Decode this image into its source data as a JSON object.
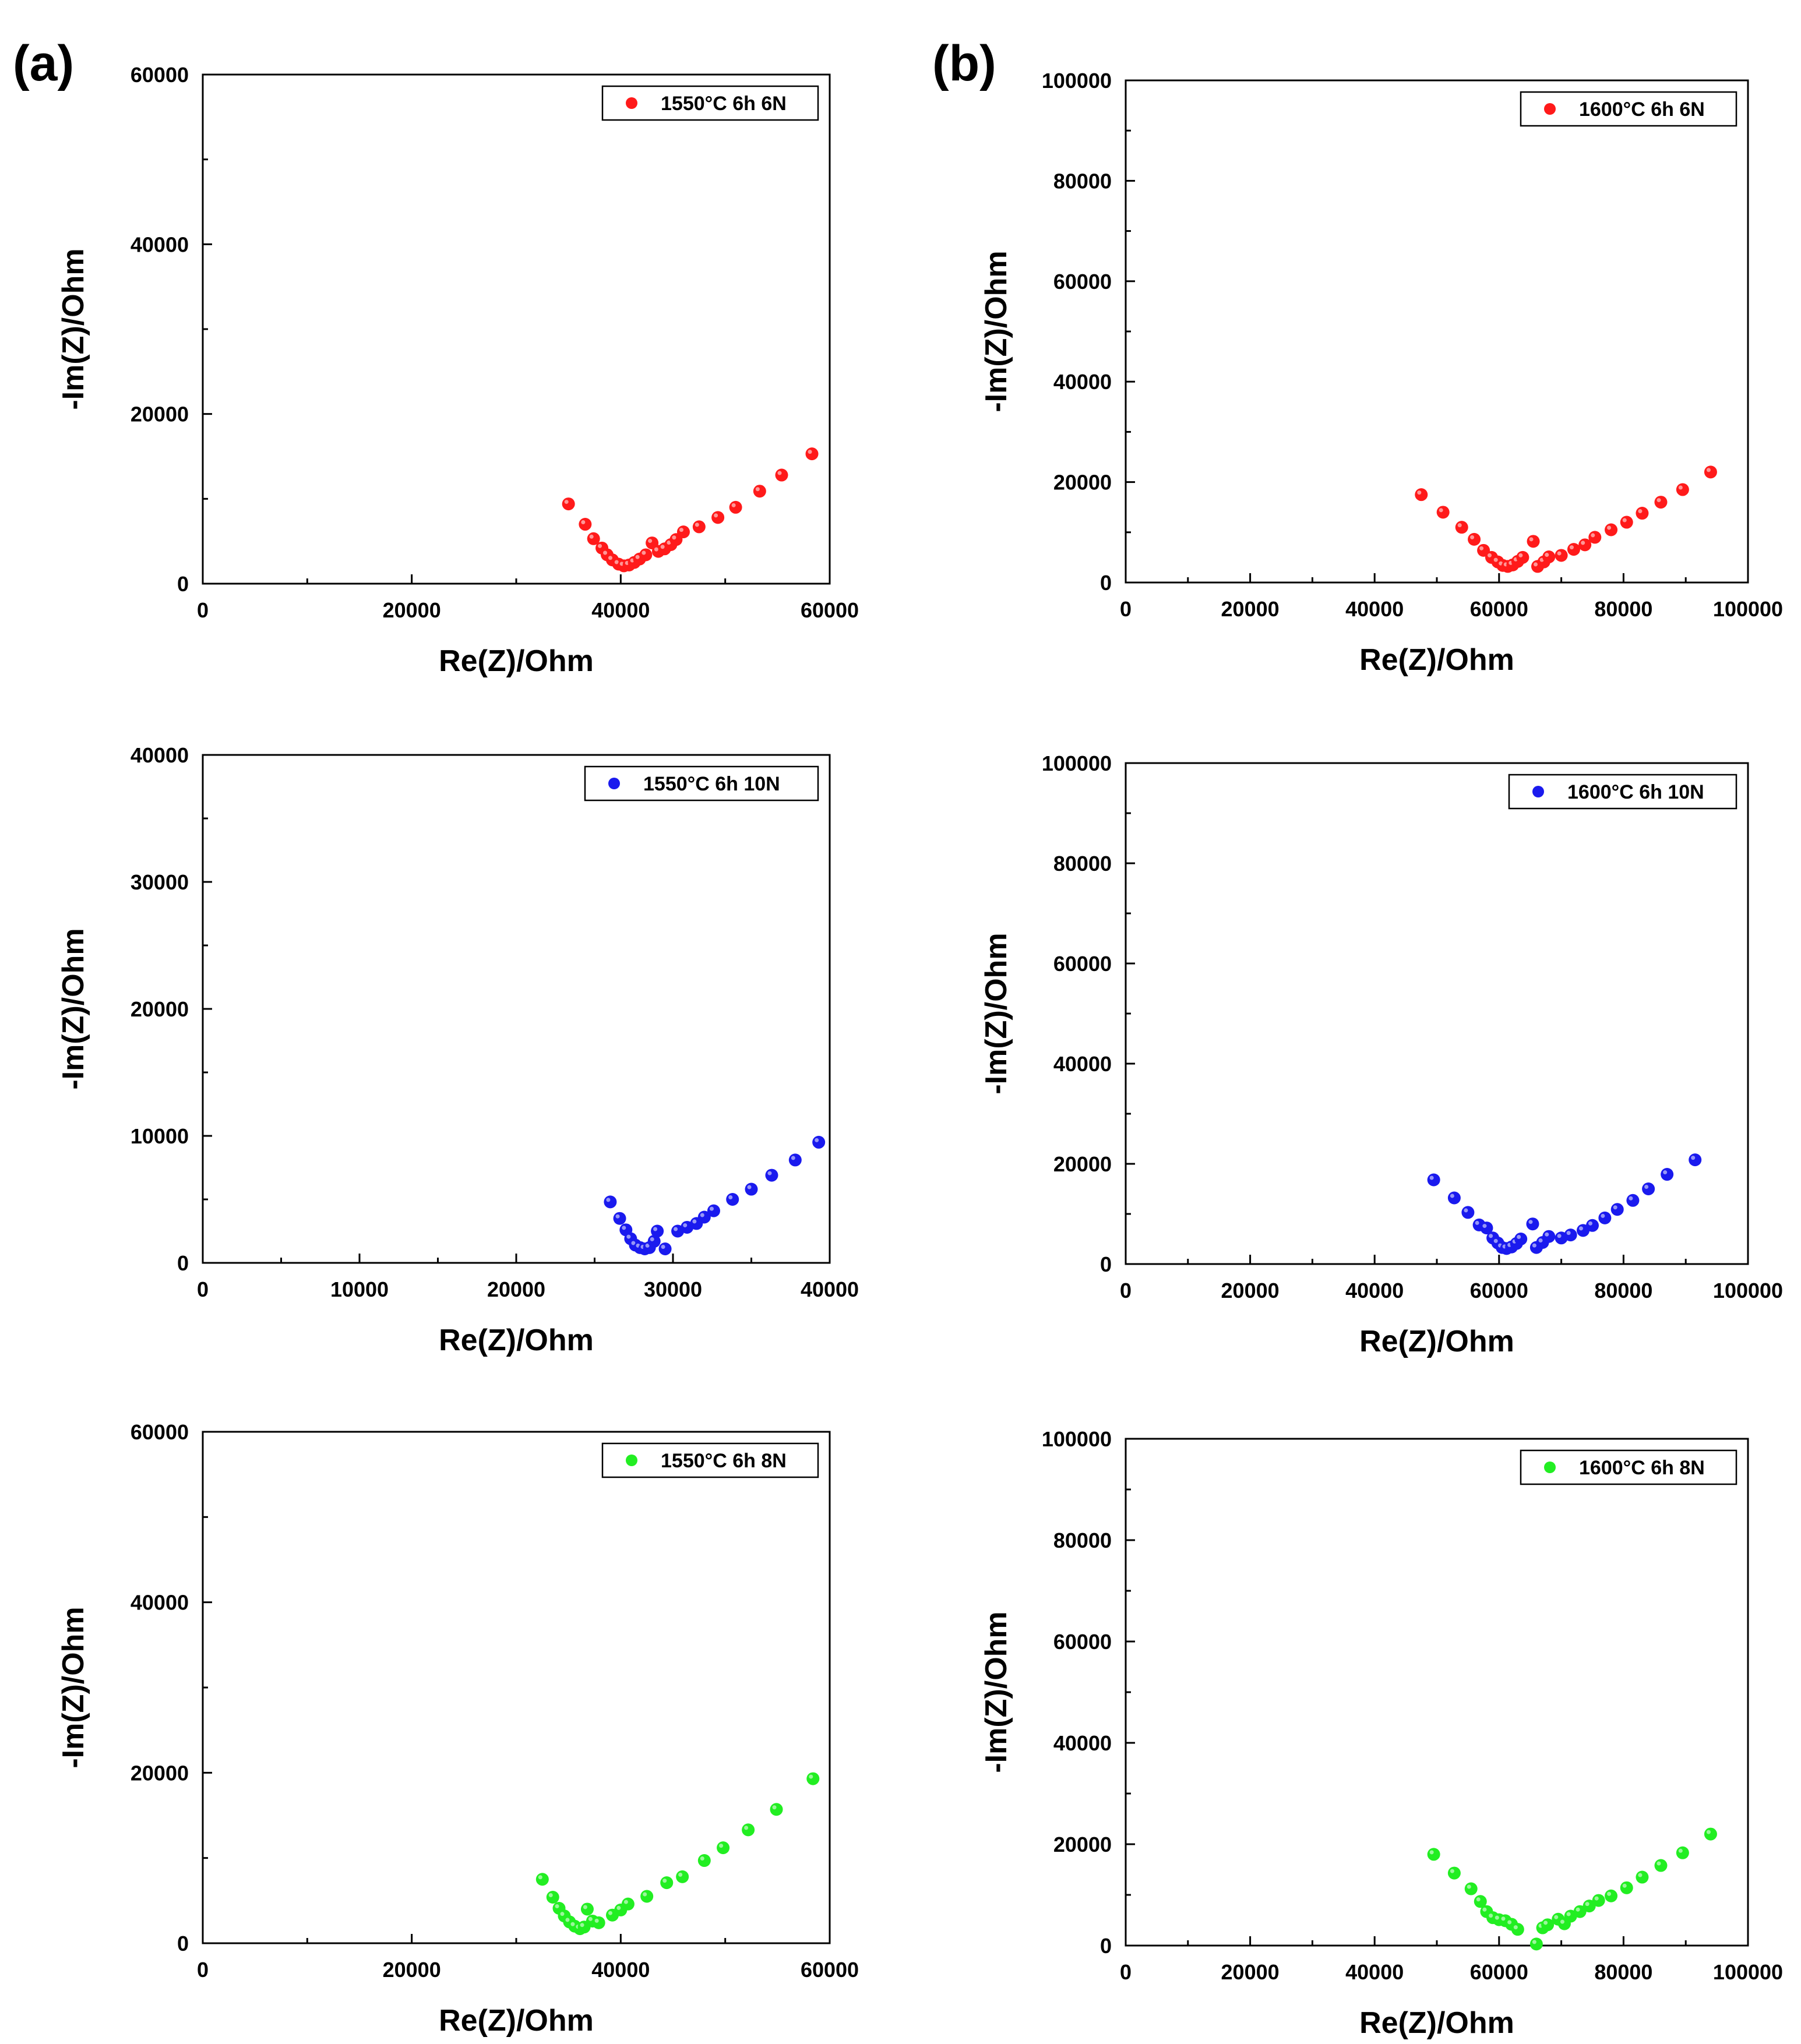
{
  "panel_labels": [
    "(a)",
    "(b)"
  ],
  "chart_data": [
    {
      "type": "scatter",
      "xlabel": "Re(Z)/Ohm",
      "ylabel": "-Im(Z)/Ohm",
      "xlim": [
        0,
        60000
      ],
      "ylim": [
        0,
        60000
      ],
      "xticks": [
        0,
        20000,
        40000,
        60000
      ],
      "yticks": [
        0,
        20000,
        40000,
        60000
      ],
      "grid": false,
      "legend_position": "top-right",
      "series": [
        {
          "name": "1550°C 6h 6N",
          "color": "#ff1a1a",
          "x": [
            35000,
            36600,
            37400,
            38200,
            38700,
            39200,
            39800,
            40300,
            40800,
            41300,
            41800,
            42400,
            43000,
            43600,
            44200,
            44800,
            45300,
            46000,
            47500,
            49300,
            51000,
            53300,
            55400,
            58300
          ],
          "y": [
            9400,
            7000,
            5300,
            4200,
            3400,
            2800,
            2300,
            2100,
            2200,
            2500,
            2900,
            3400,
            4800,
            3800,
            4100,
            4600,
            5200,
            6100,
            6700,
            7800,
            9000,
            10900,
            12800,
            15300
          ]
        }
      ]
    },
    {
      "type": "scatter",
      "xlabel": "Re(Z)/Ohm",
      "ylabel": "-Im(Z)/Ohm",
      "xlim": [
        0,
        100000
      ],
      "ylim": [
        0,
        100000
      ],
      "xticks": [
        0,
        20000,
        40000,
        60000,
        80000,
        100000
      ],
      "yticks": [
        0,
        20000,
        40000,
        60000,
        80000,
        100000
      ],
      "grid": false,
      "legend_position": "top-right",
      "series": [
        {
          "name": "1600°C 6h 6N",
          "color": "#ff1a1a",
          "x": [
            47500,
            51000,
            54000,
            56000,
            57500,
            58800,
            59800,
            60600,
            61400,
            62200,
            63000,
            63800,
            65500,
            66200,
            67200,
            68000,
            70000,
            72000,
            73800,
            75400,
            78000,
            80500,
            83000,
            86000,
            89500,
            94000
          ],
          "y": [
            17500,
            14000,
            11000,
            8600,
            6400,
            5000,
            4100,
            3400,
            3200,
            3500,
            4200,
            5000,
            8200,
            3200,
            4100,
            5100,
            5400,
            6600,
            7500,
            9000,
            10500,
            12000,
            13800,
            16000,
            18500,
            22000
          ]
        }
      ]
    },
    {
      "type": "scatter",
      "xlabel": "Re(Z)/Ohm",
      "ylabel": "-Im(Z)/Ohm",
      "xlim": [
        0,
        40000
      ],
      "ylim": [
        0,
        40000
      ],
      "xticks": [
        0,
        10000,
        20000,
        30000,
        40000
      ],
      "yticks": [
        0,
        10000,
        20000,
        30000,
        40000
      ],
      "grid": false,
      "legend_position": "top-right",
      "series": [
        {
          "name": "1550°C 6h 10N",
          "color": "#1a1aee",
          "x": [
            26000,
            26600,
            27000,
            27300,
            27600,
            27900,
            28200,
            28500,
            28800,
            29000,
            29500,
            30300,
            30900,
            31500,
            32000,
            32600,
            33800,
            35000,
            36300,
            37800,
            39300
          ],
          "y": [
            4800,
            3500,
            2600,
            1900,
            1400,
            1200,
            1100,
            1200,
            1700,
            2500,
            1100,
            2500,
            2800,
            3100,
            3600,
            4100,
            5000,
            5800,
            6900,
            8100,
            9500
          ]
        }
      ]
    },
    {
      "type": "scatter",
      "xlabel": "Re(Z)/Ohm",
      "ylabel": "-Im(Z)/Ohm",
      "xlim": [
        0,
        100000
      ],
      "ylim": [
        0,
        100000
      ],
      "xticks": [
        0,
        20000,
        40000,
        60000,
        80000,
        100000
      ],
      "yticks": [
        0,
        20000,
        40000,
        60000,
        80000,
        100000
      ],
      "grid": false,
      "legend_position": "top-right",
      "series": [
        {
          "name": "1600°C 6h 10N",
          "color": "#1a1aee",
          "x": [
            49500,
            52800,
            55000,
            56800,
            58000,
            59000,
            59800,
            60500,
            61200,
            62000,
            62800,
            63500,
            65400,
            66000,
            67000,
            68000,
            70000,
            71500,
            73500,
            75000,
            77000,
            79000,
            81500,
            84000,
            87000,
            91500
          ],
          "y": [
            16800,
            13200,
            10300,
            7800,
            7200,
            5200,
            4200,
            3300,
            3100,
            3400,
            4100,
            5000,
            8000,
            3300,
            4300,
            5500,
            5200,
            5800,
            6700,
            7700,
            9200,
            10900,
            12700,
            15000,
            17900,
            20800
          ]
        }
      ]
    },
    {
      "type": "scatter",
      "xlabel": "Re(Z)/Ohm",
      "ylabel": "-Im(Z)/Ohm",
      "xlim": [
        0,
        60000
      ],
      "ylim": [
        0,
        60000
      ],
      "xticks": [
        0,
        20000,
        40000,
        60000
      ],
      "yticks": [
        0,
        20000,
        40000,
        60000
      ],
      "grid": false,
      "legend_position": "top-right",
      "series": [
        {
          "name": "1550°C 6h 8N",
          "color": "#22ee22",
          "x": [
            32500,
            33500,
            34100,
            34600,
            35100,
            35600,
            36100,
            36500,
            36800,
            37300,
            37900,
            39200,
            40000,
            40700,
            42500,
            44400,
            45900,
            48000,
            49800,
            52200,
            54900,
            58400
          ],
          "y": [
            7500,
            5400,
            4100,
            3200,
            2500,
            2000,
            1700,
            1900,
            4000,
            2600,
            2400,
            3300,
            3900,
            4600,
            5500,
            7100,
            7800,
            9700,
            11200,
            13300,
            15700,
            19300
          ]
        }
      ]
    },
    {
      "type": "scatter",
      "xlabel": "Re(Z)/Ohm",
      "ylabel": "-Im(Z)/Ohm",
      "xlim": [
        0,
        100000
      ],
      "ylim": [
        0,
        100000
      ],
      "xticks": [
        0,
        20000,
        40000,
        60000,
        80000,
        100000
      ],
      "yticks": [
        0,
        20000,
        40000,
        60000,
        80000,
        100000
      ],
      "grid": false,
      "legend_position": "top-right",
      "series": [
        {
          "name": "1600°C 6h 8N",
          "color": "#22ee22",
          "x": [
            49500,
            52800,
            55500,
            57000,
            58000,
            59000,
            60000,
            61000,
            62000,
            63000,
            66000,
            67000,
            67800,
            69500,
            70500,
            71500,
            73000,
            74500,
            76000,
            78000,
            80500,
            83000,
            86000,
            89500,
            94000
          ],
          "y": [
            18000,
            14300,
            11200,
            8700,
            6700,
            5500,
            5100,
            4900,
            4200,
            3200,
            300,
            3500,
            4100,
            5200,
            4300,
            5800,
            6700,
            7800,
            8900,
            9800,
            11400,
            13500,
            15800,
            18300,
            22000
          ]
        }
      ]
    }
  ]
}
